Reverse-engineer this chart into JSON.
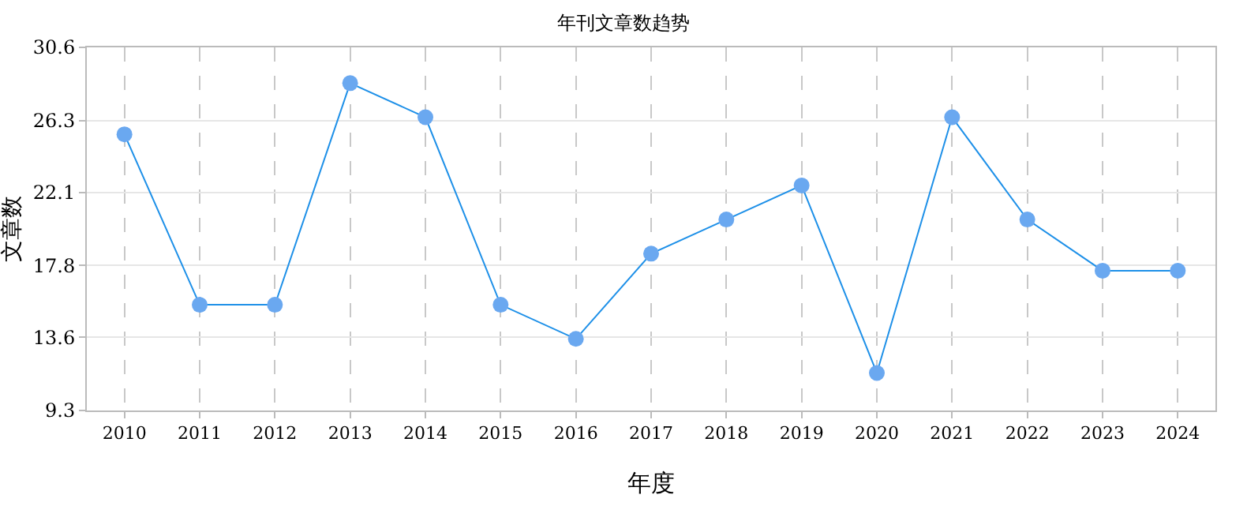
{
  "chart_data": {
    "type": "line",
    "title": "年刊文章数趋势",
    "xlabel": "年度",
    "ylabel": "文章数",
    "categories": [
      "2010",
      "2011",
      "2012",
      "2013",
      "2014",
      "2015",
      "2016",
      "2017",
      "2018",
      "2019",
      "2020",
      "2021",
      "2022",
      "2023",
      "2024"
    ],
    "series": [
      {
        "color": "#1e90e8",
        "values": [
          25.5,
          15.5,
          15.5,
          28.5,
          26.5,
          15.5,
          13.5,
          18.5,
          20.5,
          22.5,
          11.5,
          26.5,
          20.5,
          17.5,
          17.5
        ]
      }
    ],
    "ylim": [
      9.3,
      30.6
    ],
    "yticks": [
      9.3,
      13.6,
      17.8,
      22.1,
      26.3,
      30.6
    ],
    "grid": true,
    "marker": "circle",
    "line_style": "solid"
  }
}
